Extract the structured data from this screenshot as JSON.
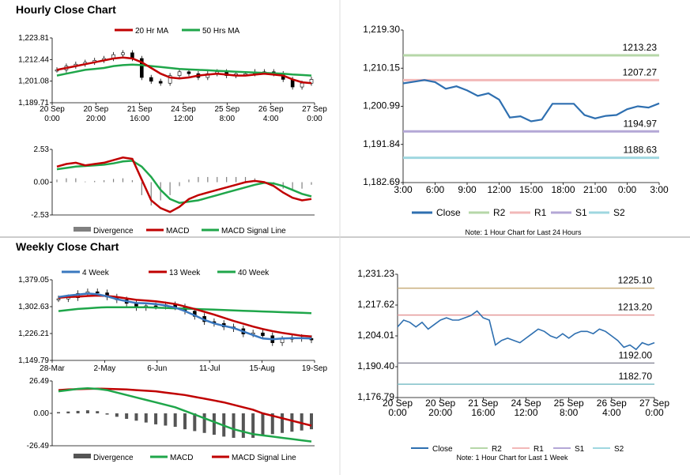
{
  "titles": {
    "hourly": "Hourly Close Chart",
    "weekly": "Weekly Close Chart"
  },
  "colors": {
    "red": "#c00000",
    "green": "#1fa64a",
    "blue": "#3a78bf",
    "gray": "#808080",
    "r2": "#b6d7a8",
    "r1": "#f2b8b8",
    "s1": "#b4a7d6",
    "s2": "#9fd7e0",
    "close": "#2e6fb0"
  },
  "chart_data": [
    {
      "id": "hourly_price",
      "type": "candlestick",
      "legend": [
        "20 Hr MA",
        "50 Hrs MA"
      ],
      "yticks": [
        "1,223.81",
        "1,212.44",
        "1,201.08",
        "1,189.71"
      ],
      "ylim": [
        1189.71,
        1223.81
      ],
      "xticks": [
        [
          "20 Sep",
          "0:00"
        ],
        [
          "20 Sep",
          "20:00"
        ],
        [
          "21 Sep",
          "16:00"
        ],
        [
          "24 Sep",
          "12:00"
        ],
        [
          "25 Sep",
          "8:00"
        ],
        [
          "26 Sep",
          "4:00"
        ],
        [
          "27 Sep",
          "0:00"
        ]
      ],
      "series": [
        {
          "name": "20 Hr MA",
          "values": [
            1207,
            1208,
            1209,
            1210,
            1211,
            1212,
            1213,
            1213.5,
            1213,
            1211,
            1208,
            1205,
            1203,
            1202.5,
            1203,
            1204,
            1204.5,
            1205,
            1204.5,
            1204,
            1204,
            1204.5,
            1205,
            1204.5,
            1204,
            1202,
            1200.5,
            1200
          ]
        },
        {
          "name": "50 Hrs MA",
          "values": [
            1204,
            1205,
            1206,
            1207,
            1207.5,
            1208,
            1209,
            1209.5,
            1209.8,
            1209.5,
            1209,
            1208.5,
            1208,
            1207.5,
            1207.2,
            1207,
            1206.8,
            1206.5,
            1206.3,
            1206,
            1205.8,
            1205.6,
            1205.4,
            1205.2,
            1205,
            1204.6,
            1204.3,
            1204
          ]
        }
      ],
      "candles": [
        1207,
        1209,
        1210,
        1211,
        1212,
        1213,
        1215,
        1216,
        1213,
        1203,
        1201,
        1200,
        1204,
        1206,
        1205,
        1203,
        1205,
        1206,
        1204,
        1205,
        1205,
        1206,
        1206,
        1205,
        1202,
        1198,
        1200,
        1202
      ]
    },
    {
      "id": "hourly_macd",
      "type": "line+bar",
      "legend": [
        "Divergence",
        "MACD",
        "MACD Signal Line"
      ],
      "yticks": [
        "2.53",
        "0.00",
        "-2.53"
      ],
      "ylim": [
        -2.53,
        2.53
      ],
      "series": [
        {
          "name": "MACD",
          "values": [
            1.2,
            1.4,
            1.5,
            1.3,
            1.4,
            1.5,
            1.7,
            1.9,
            1.8,
            0.2,
            -1.4,
            -2.0,
            -2.3,
            -1.9,
            -1.3,
            -1.0,
            -0.8,
            -0.6,
            -0.4,
            -0.2,
            0.0,
            0.1,
            0.0,
            -0.3,
            -0.8,
            -1.2,
            -1.4,
            -1.3
          ]
        },
        {
          "name": "MACD Signal Line",
          "values": [
            1.0,
            1.1,
            1.2,
            1.25,
            1.3,
            1.35,
            1.45,
            1.6,
            1.65,
            1.2,
            0.4,
            -0.6,
            -1.3,
            -1.6,
            -1.5,
            -1.4,
            -1.2,
            -1.0,
            -0.8,
            -0.6,
            -0.4,
            -0.2,
            -0.05,
            -0.1,
            -0.3,
            -0.6,
            -0.9,
            -1.1
          ]
        },
        {
          "name": "Divergence",
          "values": [
            0.2,
            0.3,
            0.3,
            0.05,
            0.1,
            0.15,
            0.25,
            0.3,
            0.15,
            -1.0,
            -1.8,
            -1.4,
            -1.0,
            -0.3,
            0.2,
            0.4,
            0.4,
            0.4,
            0.4,
            0.4,
            0.4,
            0.3,
            0.05,
            -0.2,
            -0.5,
            -0.6,
            -0.5,
            -0.2
          ]
        }
      ]
    },
    {
      "id": "hourly_intraday",
      "type": "line",
      "yticks": [
        "1,219.30",
        "1,210.15",
        "1,200.99",
        "1,191.84",
        "1,182.69"
      ],
      "ylim": [
        1182.69,
        1219.3
      ],
      "xticks": [
        "3:00",
        "6:00",
        "9:00",
        "12:00",
        "15:00",
        "18:00",
        "21:00",
        "0:00",
        "3:00"
      ],
      "levels": [
        {
          "name": "R2",
          "value": 1213.23,
          "label": "1213.23"
        },
        {
          "name": "R1",
          "value": 1207.27,
          "label": "1207.27"
        },
        {
          "name": "S1",
          "value": 1194.97,
          "label": "1194.97"
        },
        {
          "name": "S2",
          "value": 1188.63,
          "label": "1188.63"
        }
      ],
      "series": [
        {
          "name": "Close",
          "values": [
            1206.5,
            1206.9,
            1207.3,
            1206.8,
            1205.2,
            1205.8,
            1204.8,
            1203.5,
            1204.1,
            1202.6,
            1198.3,
            1198.6,
            1197.4,
            1197.8,
            1201.6,
            1201.6,
            1201.6,
            1198.9,
            1198.1,
            1198.7,
            1198.9,
            1200.3,
            1201.0,
            1200.7,
            1201.7
          ]
        }
      ],
      "legend": [
        "Close",
        "R2",
        "R1",
        "S1",
        "S2"
      ],
      "note": "Note: 1 Hour Chart for Last 24 Hours"
    },
    {
      "id": "weekly_price",
      "type": "candlestick",
      "legend": [
        "4 Week",
        "13 Week",
        "40 Week"
      ],
      "yticks": [
        "1,379.05",
        "1,302.63",
        "1,226.21",
        "1,149.79"
      ],
      "ylim": [
        1149.79,
        1379.05
      ],
      "xticks": [
        "28-Mar",
        "2-May",
        "6-Jun",
        "11-Jul",
        "15-Aug",
        "19-Sep"
      ],
      "series": [
        {
          "name": "4 Week",
          "values": [
            1330,
            1334,
            1337,
            1340,
            1338,
            1332,
            1324,
            1318,
            1313,
            1312,
            1310,
            1306,
            1300,
            1290,
            1278,
            1265,
            1255,
            1248,
            1242,
            1232,
            1222,
            1212,
            1210,
            1212,
            1213,
            1213,
            1212
          ]
        },
        {
          "name": "13 Week",
          "values": [
            1328,
            1330,
            1331,
            1333,
            1334,
            1333,
            1330,
            1326,
            1322,
            1320,
            1318,
            1314,
            1310,
            1303,
            1296,
            1288,
            1280,
            1271,
            1262,
            1254,
            1246,
            1239,
            1233,
            1228,
            1224,
            1220,
            1218
          ]
        },
        {
          "name": "40 Week",
          "values": [
            1290,
            1293,
            1296,
            1298,
            1300,
            1301,
            1301,
            1301,
            1301,
            1301,
            1300,
            1299,
            1298,
            1297,
            1296,
            1295,
            1294,
            1293,
            1292,
            1291,
            1290,
            1289,
            1288,
            1287,
            1286,
            1285,
            1284
          ]
        }
      ],
      "candles": [
        1325,
        1328,
        1340,
        1345,
        1342,
        1330,
        1322,
        1312,
        1300,
        1305,
        1304,
        1308,
        1302,
        1290,
        1275,
        1260,
        1255,
        1245,
        1240,
        1225,
        1228,
        1220,
        1200,
        1210,
        1215,
        1212,
        1208
      ]
    },
    {
      "id": "weekly_macd",
      "type": "line+bar",
      "legend": [
        "Divergence",
        "MACD",
        "MACD Signal Line"
      ],
      "yticks": [
        "26.49",
        "0.00",
        "-26.49"
      ],
      "ylim": [
        -26.49,
        26.49
      ],
      "series": [
        {
          "name": "MACD",
          "values": [
            18,
            19,
            20,
            20.5,
            20,
            19,
            17,
            15,
            13,
            11,
            9,
            7,
            5,
            2,
            -1,
            -4,
            -7,
            -10,
            -13,
            -15,
            -17,
            -18,
            -19,
            -20,
            -21,
            -22,
            -23
          ]
        },
        {
          "name": "MACD Signal Line",
          "values": [
            19,
            19.5,
            19.8,
            20,
            20.2,
            20,
            19.8,
            19.5,
            19,
            18.5,
            18,
            17,
            16,
            15,
            13.5,
            12,
            10.5,
            9,
            7,
            5,
            3,
            0,
            -2,
            -4,
            -6,
            -8,
            -10
          ]
        },
        {
          "name": "Divergence",
          "values": [
            1,
            1.5,
            2,
            2.5,
            1.8,
            -1,
            -2.8,
            -4.5,
            -6,
            -7.5,
            -9,
            -10,
            -11,
            -13,
            -14.5,
            -16,
            -17.5,
            -19,
            -20,
            -20,
            -20,
            -18,
            -17,
            -16,
            -15,
            -14,
            -13
          ]
        }
      ]
    },
    {
      "id": "weekly_intraday",
      "type": "line",
      "yticks": [
        "1,231.23",
        "1,217.62",
        "1,204.01",
        "1,190.40",
        "1,176.79"
      ],
      "ylim": [
        1176.79,
        1231.23
      ],
      "xticks": [
        [
          "20 Sep",
          "0:00"
        ],
        [
          "20 Sep",
          "20:00"
        ],
        [
          "21 Sep",
          "16:00"
        ],
        [
          "24 Sep",
          "12:00"
        ],
        [
          "25 Sep",
          "8:00"
        ],
        [
          "26 Sep",
          "4:00"
        ],
        [
          "27 Sep",
          "0:00"
        ]
      ],
      "levels": [
        {
          "name": "R2",
          "value": 1225.1,
          "label": "1225.10"
        },
        {
          "name": "R1",
          "value": 1213.2,
          "label": "1213.20"
        },
        {
          "name": "S1",
          "value": 1192.0,
          "label": "1192.00"
        },
        {
          "name": "S2",
          "value": 1182.7,
          "label": "1182.70"
        }
      ],
      "series": [
        {
          "name": "Close",
          "values": [
            1208,
            1211,
            1210,
            1208,
            1210,
            1207,
            1209,
            1211,
            1212,
            1211,
            1211,
            1212,
            1213,
            1215,
            1212,
            1211,
            1200,
            1202,
            1203,
            1202,
            1201,
            1203,
            1205,
            1207,
            1206,
            1204,
            1203,
            1205,
            1203,
            1205,
            1206,
            1206,
            1205,
            1207,
            1206,
            1204,
            1202,
            1199,
            1200,
            1198,
            1201,
            1200,
            1201
          ]
        }
      ],
      "legend": [
        "Close",
        "R2",
        "R1",
        "S1",
        "S2"
      ],
      "note": "Note: 1 Hour Chart for Last 1 Week"
    }
  ]
}
